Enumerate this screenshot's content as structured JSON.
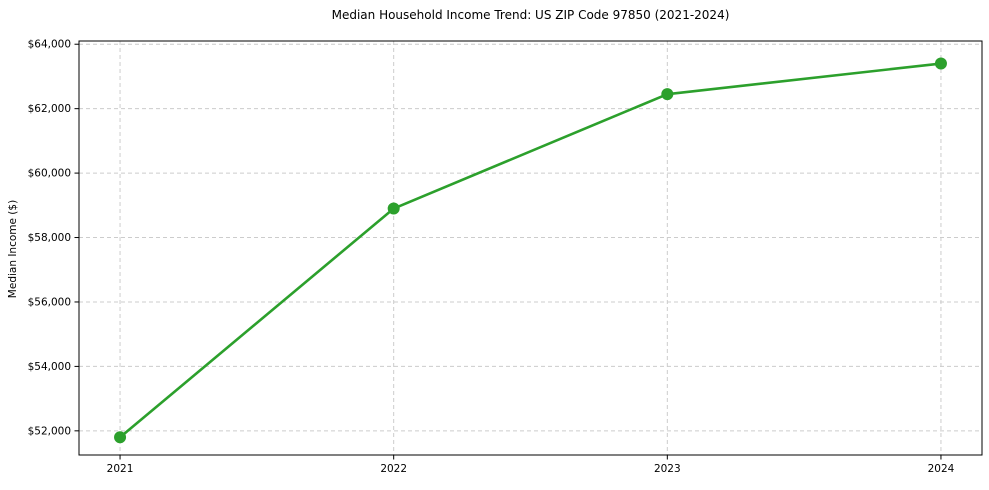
{
  "title": "Median Household Income Trend: US ZIP Code 97850 (2021-2024)",
  "colors": {
    "line": "#2ca02c",
    "marker": "#2ca02c",
    "grid": "#cccccc",
    "axis": "#000000",
    "text": "#000000",
    "background": "#ffffff"
  },
  "chart_data": {
    "type": "line",
    "title": "Median Household Income Trend: US ZIP Code 97850 (2021-2024)",
    "xlabel": "",
    "ylabel": "Median Income ($)",
    "categories": [
      "2021",
      "2022",
      "2023",
      "2024"
    ],
    "x_numeric": [
      2021,
      2022,
      2023,
      2024
    ],
    "values": [
      51800,
      58900,
      62450,
      63400
    ],
    "xlim": [
      2020.85,
      2024.15
    ],
    "ylim": [
      51250,
      64100
    ],
    "yticks": [
      52000,
      54000,
      56000,
      58000,
      60000,
      62000,
      64000
    ],
    "ytick_labels": [
      "$52,000",
      "$54,000",
      "$56,000",
      "$58,000",
      "$60,000",
      "$62,000",
      "$64,000"
    ],
    "grid": true,
    "grid_style": "dashed",
    "legend_position": "none",
    "line_color": "#2ca02c",
    "marker": "circle"
  }
}
